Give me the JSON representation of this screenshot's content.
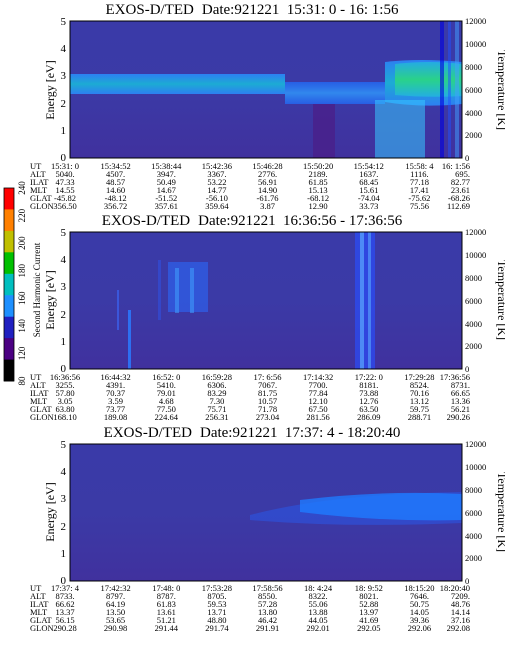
{
  "chart_data": [
    {
      "type": "heatmap",
      "title": "EXOS-D/TED",
      "date": "Date:921221",
      "time_range": "15:31: 0 - 16: 1:56",
      "ylabel": "Energy [eV]",
      "ylim": [
        0,
        5
      ],
      "yticks": [
        "0",
        "1",
        "2",
        "3",
        "4",
        "5"
      ],
      "y2label": "Temperature [K]",
      "y2lim": [
        0,
        12000
      ],
      "y2ticks": [
        "0",
        "2000",
        "4000",
        "6000",
        "8000",
        "10000",
        "12000"
      ],
      "ephemeris": {
        "labels": [
          "UT",
          "ALT",
          "ILAT",
          "MLT",
          "GLAT",
          "GLON"
        ],
        "columns": [
          [
            "15:31: 0",
            "5040.",
            "47.33",
            "14.55",
            "-45.82",
            "356.50"
          ],
          [
            "15:34:52",
            "4507.",
            "48.57",
            "14.60",
            "-48.12",
            "356.72"
          ],
          [
            "15:38:44",
            "3947.",
            "50.49",
            "14.67",
            "-51.52",
            "357.61"
          ],
          [
            "15:42:36",
            "3367.",
            "53.22",
            "14.77",
            "-56.10",
            "359.64"
          ],
          [
            "15:46:28",
            "2776.",
            "56.91",
            "14.90",
            "-61.76",
            "3.87"
          ],
          [
            "15:50:20",
            "2189.",
            "61.85",
            "15.13",
            "-68.12",
            "12.90"
          ],
          [
            "15:54:12",
            "1637.",
            "68.45",
            "15.61",
            "-74.04",
            "33.73"
          ],
          [
            "15:58: 4",
            "1116.",
            "77.18",
            "17.41",
            "-75.62",
            "75.56"
          ],
          [
            "16: 1:56",
            "695.",
            "82.77",
            "23.61",
            "-68.26",
            "112.69"
          ]
        ]
      },
      "features": [
        {
          "kind": "band",
          "from_x": 0.0,
          "to_x": 0.55,
          "y": [
            2.4,
            3.2
          ]
        },
        {
          "kind": "band",
          "from_x": 0.55,
          "to_x": 0.8,
          "y": [
            1.9,
            2.8
          ]
        },
        {
          "kind": "band",
          "from_x": 0.8,
          "to_x": 1.0,
          "y": [
            2.2,
            3.5
          ]
        },
        {
          "kind": "void",
          "from_x": 0.62,
          "to_x": 0.68,
          "y": [
            0,
            2.0
          ]
        },
        {
          "kind": "stripes",
          "from_x": 0.88,
          "to_x": 0.98,
          "y": [
            0,
            5
          ]
        }
      ]
    },
    {
      "type": "heatmap",
      "title": "EXOS-D/TED",
      "date": "Date:921221",
      "time_range": "16:36:56 - 17:36:56",
      "ylabel": "Energy [eV]",
      "ylim": [
        0,
        5
      ],
      "yticks": [
        "0",
        "1",
        "2",
        "3",
        "4",
        "5"
      ],
      "y2label": "Temperature [K]",
      "y2lim": [
        0,
        12000
      ],
      "y2ticks": [
        "0",
        "2000",
        "4000",
        "6000",
        "8000",
        "10000",
        "12000"
      ],
      "ephemeris": {
        "labels": [
          "UT",
          "ALT",
          "ILAT",
          "MLT",
          "GLAT",
          "GLON"
        ],
        "columns": [
          [
            "16:36:56",
            "3255.",
            "57.80",
            "3.05",
            "63.80",
            "168.10"
          ],
          [
            "16:44:32",
            "4391.",
            "70.37",
            "3.59",
            "73.77",
            "189.08"
          ],
          [
            "16:52: 0",
            "5410.",
            "79.01",
            "4.68",
            "77.50",
            "224.64"
          ],
          [
            "16:59:28",
            "6306.",
            "83.29",
            "7.30",
            "75.71",
            "256.31"
          ],
          [
            "17: 6:56",
            "7067.",
            "81.75",
            "10.57",
            "71.78",
            "273.04"
          ],
          [
            "17:14:32",
            "7700.",
            "77.84",
            "12.10",
            "67.50",
            "281.56"
          ],
          [
            "17:22: 0",
            "8181.",
            "73.88",
            "12.76",
            "63.50",
            "286.09"
          ],
          [
            "17:29:28",
            "8524.",
            "70.16",
            "13.12",
            "59.75",
            "288.71"
          ],
          [
            "17:36:56",
            "8731.",
            "66.65",
            "13.36",
            "56.21",
            "290.26"
          ]
        ]
      },
      "features": [
        {
          "kind": "stripes",
          "from_x": 0.18,
          "to_x": 0.2,
          "y": [
            0,
            2.5
          ]
        },
        {
          "kind": "stripes",
          "from_x": 0.34,
          "to_x": 0.48,
          "y": [
            1.0,
            4.0
          ]
        },
        {
          "kind": "stripes",
          "from_x": 0.74,
          "to_x": 0.8,
          "y": [
            0,
            5
          ]
        }
      ]
    },
    {
      "type": "heatmap",
      "title": "EXOS-D/TED",
      "date": "Date:921221",
      "time_range": "17:37: 4 - 18:20:40",
      "ylabel": "Energy [eV]",
      "ylim": [
        0,
        5
      ],
      "yticks": [
        "0",
        "1",
        "2",
        "3",
        "4",
        "5"
      ],
      "y2label": "Temperature [K]",
      "y2lim": [
        0,
        12000
      ],
      "y2ticks": [
        "0",
        "2000",
        "4000",
        "6000",
        "8000",
        "10000",
        "12000"
      ],
      "ephemeris": {
        "labels": [
          "UT",
          "ALT",
          "ILAT",
          "MLT",
          "GLAT",
          "GLON"
        ],
        "columns": [
          [
            "17:37: 4",
            "8733.",
            "66.62",
            "13.37",
            "56.15",
            "290.28"
          ],
          [
            "17:42:32",
            "8797.",
            "64.19",
            "13.50",
            "53.65",
            "290.98"
          ],
          [
            "17:48: 0",
            "8787.",
            "61.83",
            "13.61",
            "51.21",
            "291.44"
          ],
          [
            "17:53:28",
            "8705.",
            "59.53",
            "13.71",
            "48.80",
            "291.74"
          ],
          [
            "17:58:56",
            "8550.",
            "57.28",
            "13.80",
            "46.42",
            "291.91"
          ],
          [
            "18: 4:24",
            "8322.",
            "55.06",
            "13.88",
            "44.05",
            "292.01"
          ],
          [
            "18: 9:52",
            "8021.",
            "52.88",
            "13.97",
            "41.69",
            "292.05"
          ],
          [
            "18:15:20",
            "7646.",
            "50.75",
            "14.05",
            "39.36",
            "292.06"
          ],
          [
            "18:20:40",
            "7209.",
            "48.76",
            "14.14",
            "37.16",
            "292.08"
          ]
        ]
      },
      "features": [
        {
          "kind": "band",
          "from_x": 0.45,
          "to_x": 1.0,
          "y": [
            2.3,
            3.3
          ]
        }
      ]
    }
  ],
  "colorbar": {
    "label": "Second Harmonic Current",
    "ticks": [
      "80",
      "120",
      "140",
      "160",
      "180",
      "200",
      "220",
      "240"
    ],
    "colors": [
      "#000000",
      "#4b0082",
      "#2020c0",
      "#1e90ff",
      "#00bfbf",
      "#00c000",
      "#c0c000",
      "#ff8000",
      "#ff0000"
    ]
  }
}
